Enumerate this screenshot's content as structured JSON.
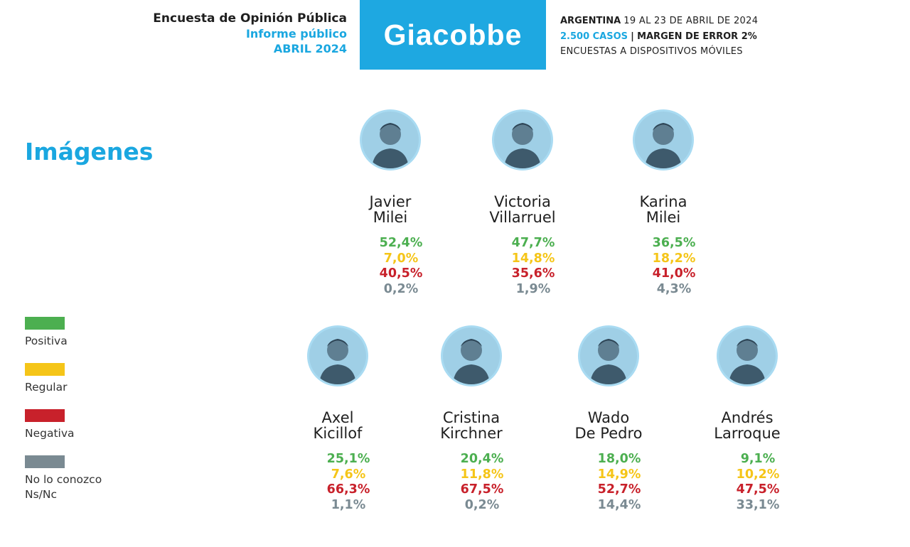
{
  "header": {
    "line1": "Encuesta de Opinión Pública",
    "line2": "Informe público",
    "line3": "ABRIL 2024",
    "brand": "Giacobbe",
    "meta1_bold": "ARGENTINA",
    "meta1_rest": "19 AL 23 DE ABRIL DE 2024",
    "meta2_blue": "2.500 CASOS",
    "meta2_sep": "|",
    "meta2_bold": "MARGEN DE ERROR 2%",
    "meta3": "ENCUESTAS A DISPOSITIVOS MÓVILES"
  },
  "colors": {
    "accent": "#1ea8e1",
    "positiva": "#4caf50",
    "regular": "#f5c518",
    "negativa": "#c8212b",
    "nsnc": "#7a8a92"
  },
  "chart_data": {
    "type": "table",
    "title": "Imágenes",
    "legend": [
      "Positiva",
      "Regular",
      "Negativa",
      "No lo conozco\nNs/Nc"
    ],
    "candidates": [
      {
        "name": "Javier\nMilei",
        "values": [
          "52,4%",
          "7,0%",
          "40,5%",
          "0,2%"
        ]
      },
      {
        "name": "Victoria\nVillarruel",
        "values": [
          "47,7%",
          "14,8%",
          "35,6%",
          "1,9%"
        ]
      },
      {
        "name": "Karina\nMilei",
        "values": [
          "36,5%",
          "18,2%",
          "41,0%",
          "4,3%"
        ]
      },
      {
        "name": "Axel\nKicillof",
        "values": [
          "25,1%",
          "7,6%",
          "66,3%",
          "1,1%"
        ]
      },
      {
        "name": "Cristina\nKirchner",
        "values": [
          "20,4%",
          "11,8%",
          "67,5%",
          "0,2%"
        ]
      },
      {
        "name": "Wado\nDe Pedro",
        "values": [
          "18,0%",
          "14,9%",
          "52,7%",
          "14,4%"
        ]
      },
      {
        "name": "Andrés\nLarroque",
        "values": [
          "9,1%",
          "10,2%",
          "47,5%",
          "33,1%"
        ]
      }
    ]
  }
}
